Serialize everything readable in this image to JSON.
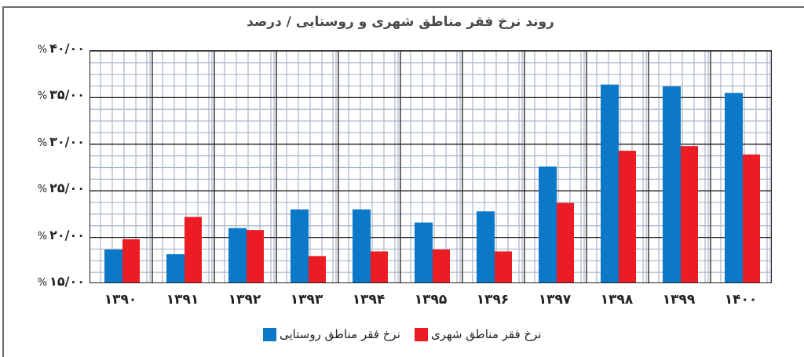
{
  "chart_data": {
    "type": "bar",
    "title": "روند نرخ فقر مناطق شهری و روستایی / درصد",
    "xlabel": "",
    "ylabel": "درصد",
    "categories": [
      "۱۳۹۰",
      "۱۳۹۱",
      "۱۳۹۲",
      "۱۳۹۳",
      "۱۳۹۴",
      "۱۳۹۵",
      "۱۳۹۶",
      "۱۳۹۷",
      "۱۳۹۸",
      "۱۳۹۹",
      "۱۴۰۰"
    ],
    "categories_latin": [
      "1390",
      "1391",
      "1392",
      "1393",
      "1394",
      "1395",
      "1396",
      "1397",
      "1398",
      "1399",
      "1400"
    ],
    "series": [
      {
        "name": "نرخ فقر مناطق روستایی",
        "color": "#0b78c8",
        "values": [
          18.7,
          18.2,
          21.0,
          23.0,
          23.0,
          21.6,
          22.8,
          27.6,
          36.4,
          36.2,
          35.5
        ]
      },
      {
        "name": "نرخ فقر مناطق شهری",
        "color": "#ec1c24",
        "values": [
          19.8,
          22.2,
          20.8,
          18.0,
          18.5,
          18.7,
          18.5,
          23.7,
          29.3,
          29.8,
          28.9
        ]
      }
    ],
    "ylim": [
      15,
      40
    ],
    "yticks": [
      40,
      35,
      30,
      25,
      20,
      15
    ],
    "ytick_labels": [
      "۴۰/۰۰",
      "۳۵/۰۰",
      "۳۰/۰۰",
      "۲۵/۰۰",
      "۲۰/۰۰",
      "۱۵/۰۰"
    ],
    "ytick_suffix": "%",
    "grid": true,
    "legend_position": "bottom"
  },
  "colors": {
    "rural": "#0b78c8",
    "urban": "#ec1c24",
    "major_grid": "#1e1e1e",
    "minor_grid": "#a9b5c9"
  },
  "legend": {
    "rural_label": "نرخ فقر مناطق روستایی",
    "urban_label": "نرخ فقر مناطق شهری"
  }
}
